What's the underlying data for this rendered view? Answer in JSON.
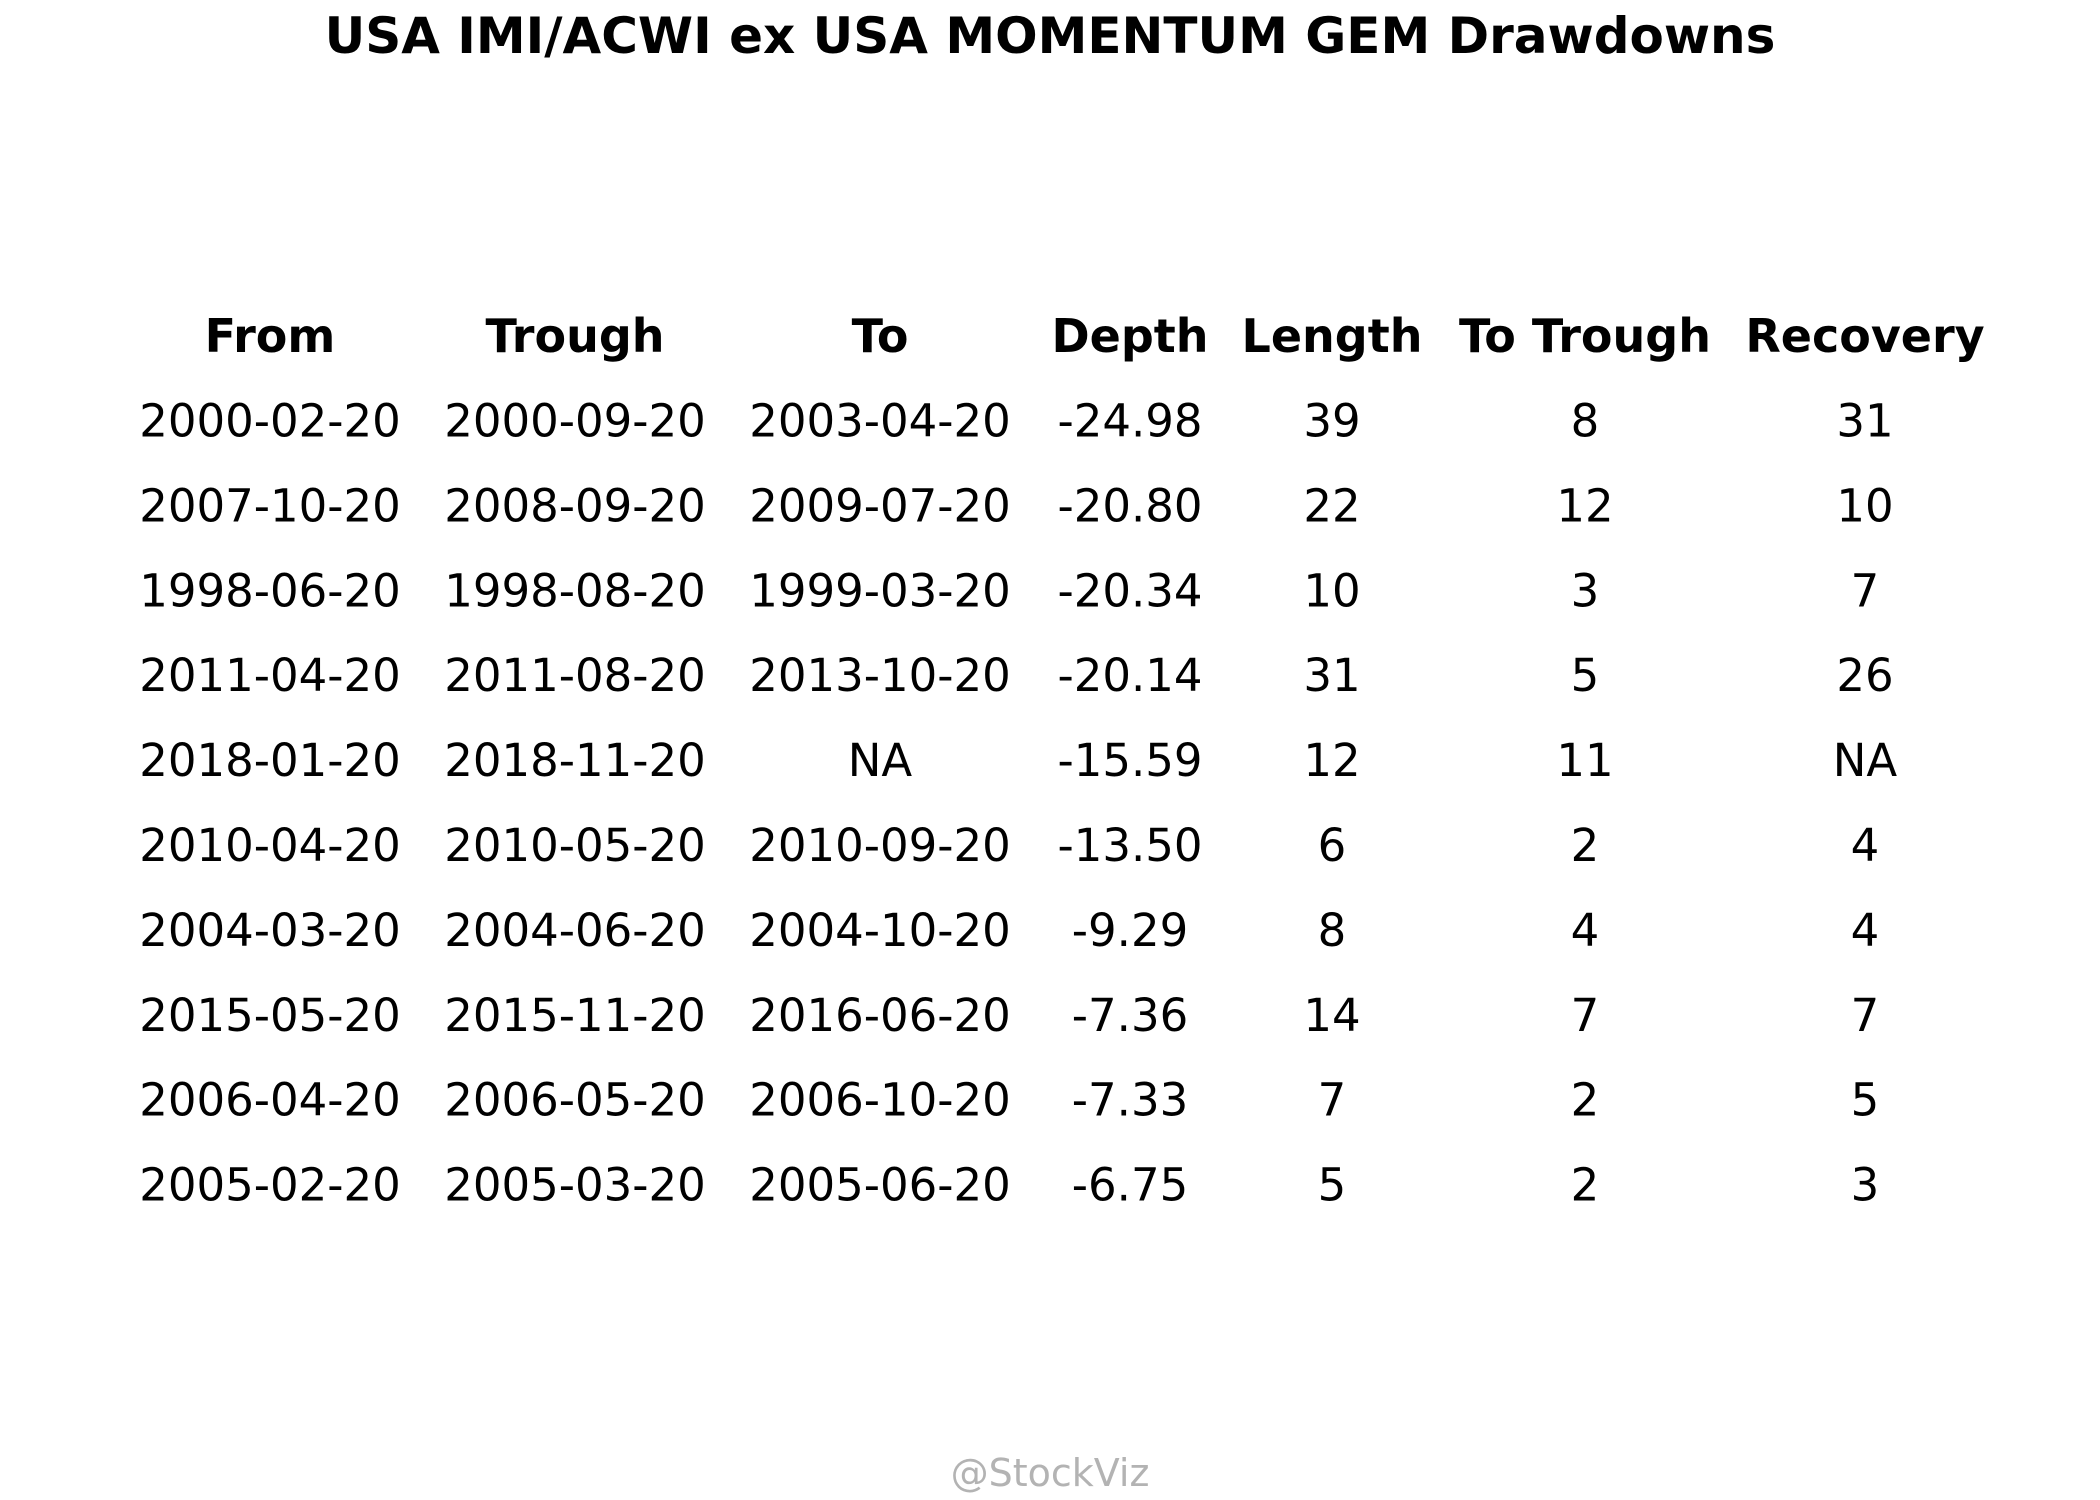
{
  "chart_data": {
    "type": "table",
    "title": "USA IMI/ACWI ex USA MOMENTUM GEM Drawdowns",
    "columns": [
      "From",
      "Trough",
      "To",
      "Depth",
      "Length",
      "To Trough",
      "Recovery"
    ],
    "rows": [
      [
        "2000-02-20",
        "2000-09-20",
        "2003-04-20",
        "-24.98",
        "39",
        "8",
        "31"
      ],
      [
        "2007-10-20",
        "2008-09-20",
        "2009-07-20",
        "-20.80",
        "22",
        "12",
        "10"
      ],
      [
        "1998-06-20",
        "1998-08-20",
        "1999-03-20",
        "-20.34",
        "10",
        "3",
        "7"
      ],
      [
        "2011-04-20",
        "2011-08-20",
        "2013-10-20",
        "-20.14",
        "31",
        "5",
        "26"
      ],
      [
        "2018-01-20",
        "2018-11-20",
        "NA",
        "-15.59",
        "12",
        "11",
        "NA"
      ],
      [
        "2010-04-20",
        "2010-05-20",
        "2010-09-20",
        "-13.50",
        "6",
        "2",
        "4"
      ],
      [
        "2004-03-20",
        "2004-06-20",
        "2004-10-20",
        "-9.29",
        "8",
        "4",
        "4"
      ],
      [
        "2015-05-20",
        "2015-11-20",
        "2016-06-20",
        "-7.36",
        "14",
        "7",
        "7"
      ],
      [
        "2006-04-20",
        "2006-05-20",
        "2006-10-20",
        "-7.33",
        "7",
        "2",
        "5"
      ],
      [
        "2005-02-20",
        "2005-03-20",
        "2005-06-20",
        "-6.75",
        "5",
        "2",
        "3"
      ]
    ]
  },
  "watermark": "@StockViz"
}
